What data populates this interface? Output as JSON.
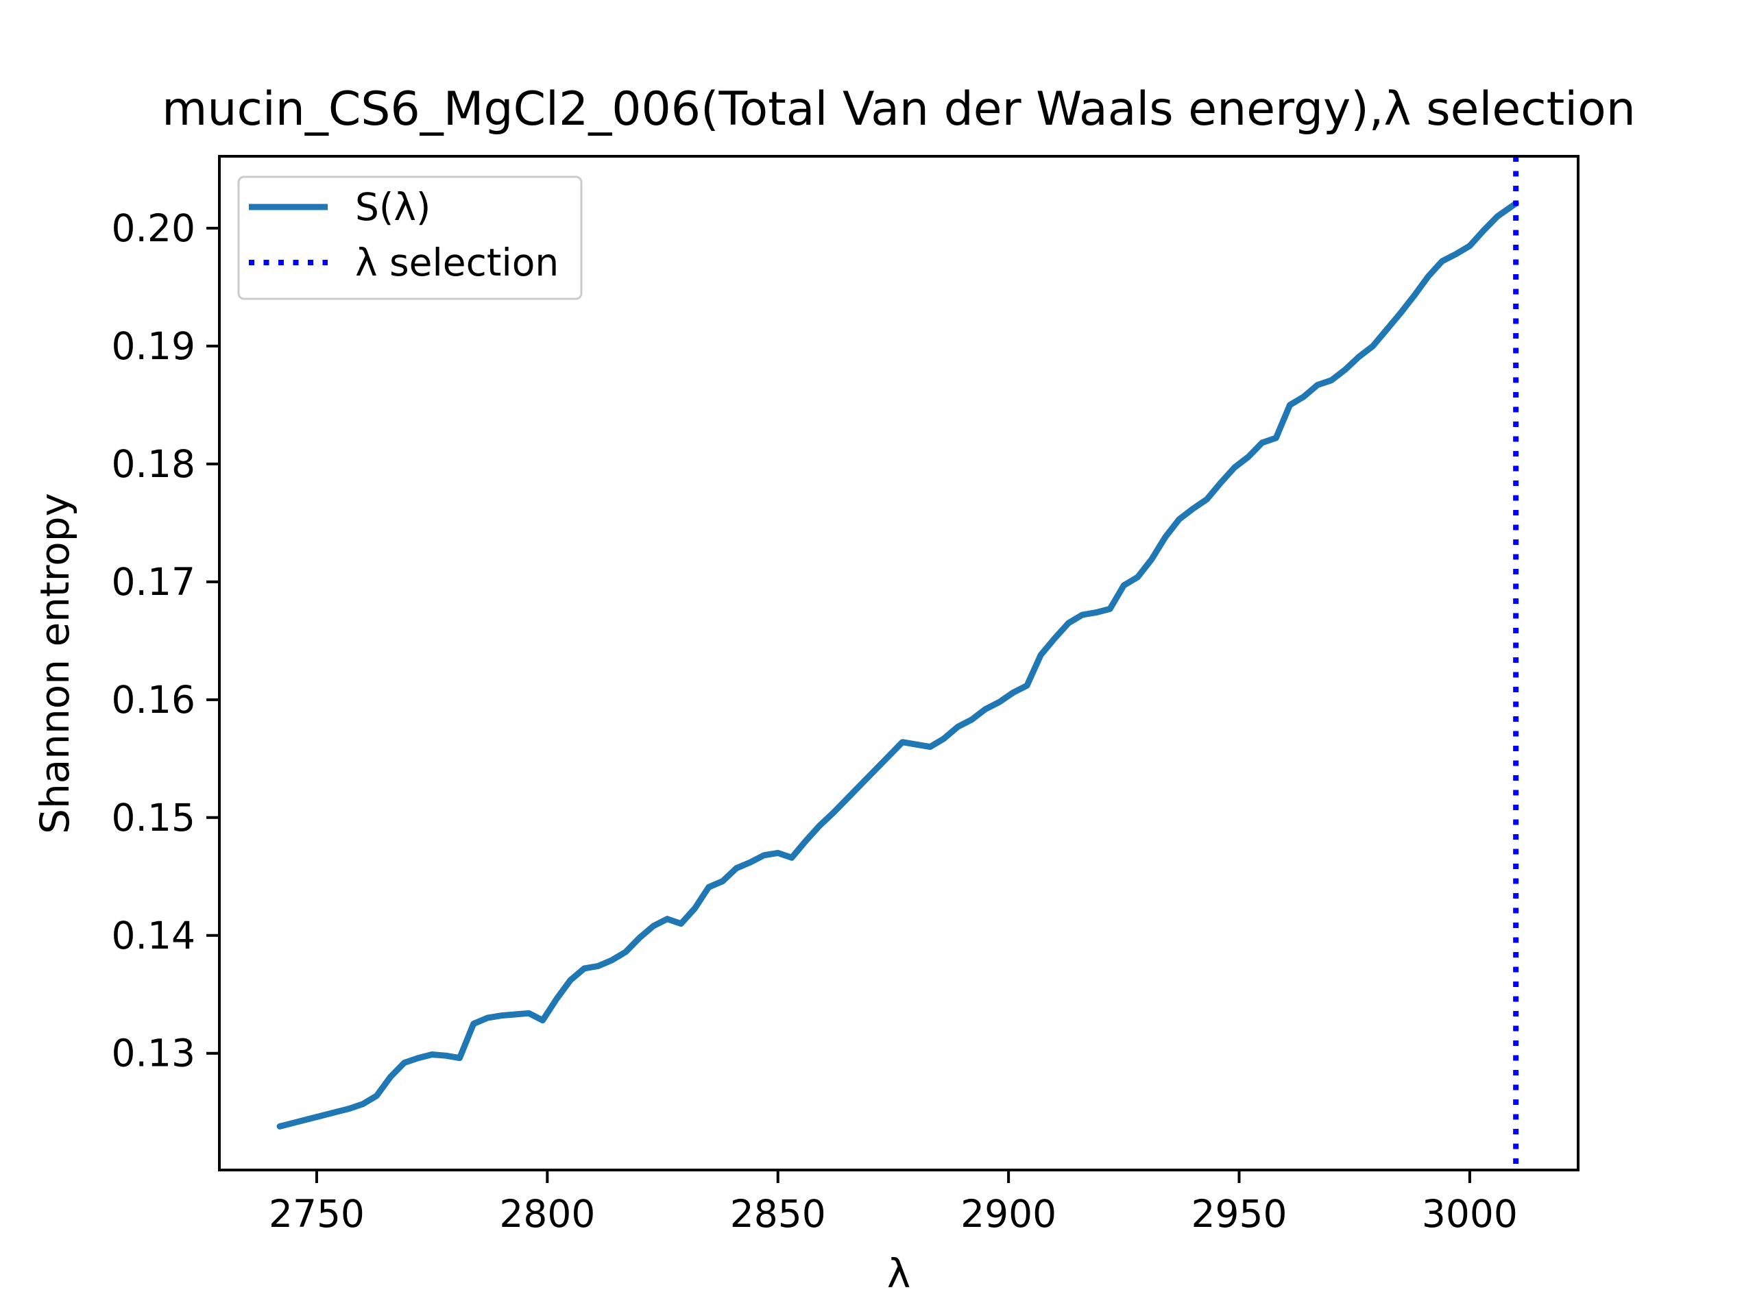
{
  "figure": {
    "background": "#ffffff"
  },
  "chart_data": {
    "type": "line",
    "title": "mucin_CS6_MgCl2_006(Total Van der Waals energy),λ selection",
    "xlabel": "λ",
    "ylabel": "Shannon entropy",
    "xlim": [
      2728.9,
      3023.5
    ],
    "ylim": [
      0.1201,
      0.2061
    ],
    "grid": false,
    "x_ticks": [
      2750,
      2800,
      2850,
      2900,
      2950,
      3000
    ],
    "x_tick_labels": [
      "2750",
      "2800",
      "2850",
      "2900",
      "2950",
      "3000"
    ],
    "y_ticks": [
      0.13,
      0.14,
      0.15,
      0.16,
      0.17,
      0.18,
      0.19,
      0.2
    ],
    "y_tick_labels": [
      "0.13",
      "0.14",
      "0.15",
      "0.16",
      "0.17",
      "0.18",
      "0.19",
      "0.20"
    ],
    "series": [
      {
        "name": "S(λ)",
        "color": "#1f77b4",
        "style": "solid",
        "x": [
          2742,
          2745,
          2748,
          2751,
          2754,
          2757,
          2760,
          2763,
          2766,
          2769,
          2772,
          2775,
          2778,
          2781,
          2784,
          2787,
          2790,
          2793,
          2796,
          2799,
          2802,
          2805,
          2808,
          2811,
          2814,
          2817,
          2820,
          2823,
          2826,
          2829,
          2832,
          2835,
          2838,
          2841,
          2844,
          2847,
          2850,
          2853,
          2856,
          2859,
          2862,
          2865,
          2868,
          2871,
          2874,
          2877,
          2880,
          2883,
          2886,
          2889,
          2892,
          2895,
          2898,
          2901,
          2904,
          2907,
          2910,
          2913,
          2916,
          2919,
          2922,
          2925,
          2928,
          2931,
          2934,
          2937,
          2940,
          2943,
          2946,
          2949,
          2952,
          2955,
          2958,
          2961,
          2964,
          2967,
          2970,
          2973,
          2976,
          2979,
          2982,
          2985,
          2988,
          2991,
          2994,
          2997,
          3000,
          3003,
          3006,
          3010
        ],
        "y": [
          0.1238,
          0.1241,
          0.1244,
          0.1247,
          0.125,
          0.1253,
          0.1257,
          0.1264,
          0.128,
          0.1292,
          0.1296,
          0.1299,
          0.1298,
          0.1296,
          0.1325,
          0.133,
          0.1332,
          0.1333,
          0.1334,
          0.1328,
          0.1346,
          0.1362,
          0.1372,
          0.1374,
          0.1379,
          0.1386,
          0.1398,
          0.1408,
          0.1414,
          0.141,
          0.1423,
          0.1441,
          0.1446,
          0.1457,
          0.1462,
          0.1468,
          0.147,
          0.1466,
          0.148,
          0.1493,
          0.1504,
          0.1516,
          0.1528,
          0.154,
          0.1552,
          0.1564,
          0.1562,
          0.156,
          0.1567,
          0.1577,
          0.1583,
          0.1592,
          0.1598,
          0.1606,
          0.1612,
          0.1638,
          0.1652,
          0.1665,
          0.1672,
          0.1674,
          0.1677,
          0.1697,
          0.1704,
          0.1719,
          0.1738,
          0.1753,
          0.1762,
          0.177,
          0.1784,
          0.1797,
          0.1806,
          0.1818,
          0.1822,
          0.185,
          0.1857,
          0.1867,
          0.1871,
          0.188,
          0.1891,
          0.19,
          0.1914,
          0.1928,
          0.1943,
          0.1959,
          0.1972,
          0.1978,
          0.1985,
          0.1998,
          0.201,
          0.2021
        ]
      }
    ],
    "vline": {
      "name": "λ selection",
      "x": 3010,
      "color": "#0000ff",
      "style": "dotted"
    },
    "legend": {
      "position": "upper left",
      "entries": [
        "S(λ)",
        "λ selection"
      ]
    }
  }
}
